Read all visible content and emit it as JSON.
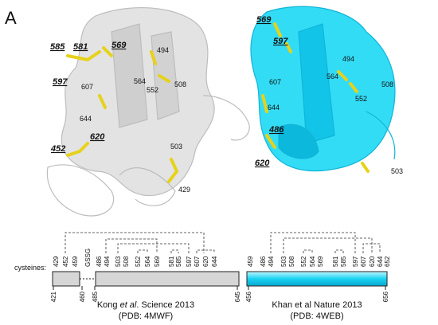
{
  "panel_label": "A",
  "left_structure": {
    "labels": [
      {
        "text": "585",
        "emphasized": true
      },
      {
        "text": "581",
        "emphasized": true
      },
      {
        "text": "569",
        "emphasized": true
      },
      {
        "text": "597",
        "emphasized": true
      },
      {
        "text": "607",
        "emphasized": false
      },
      {
        "text": "644",
        "emphasized": false
      },
      {
        "text": "494",
        "emphasized": false
      },
      {
        "text": "564",
        "emphasized": false
      },
      {
        "text": "552",
        "emphasized": false
      },
      {
        "text": "508",
        "emphasized": false
      },
      {
        "text": "620",
        "emphasized": true
      },
      {
        "text": "452",
        "emphasized": true
      },
      {
        "text": "503",
        "emphasized": false
      },
      {
        "text": "429",
        "emphasized": false
      }
    ]
  },
  "right_structure": {
    "labels": [
      {
        "text": "569",
        "emphasized": true
      },
      {
        "text": "597",
        "emphasized": true
      },
      {
        "text": "494",
        "emphasized": false
      },
      {
        "text": "564",
        "emphasized": false
      },
      {
        "text": "508",
        "emphasized": false
      },
      {
        "text": "607",
        "emphasized": false
      },
      {
        "text": "552",
        "emphasized": false
      },
      {
        "text": "644",
        "emphasized": false
      },
      {
        "text": "486",
        "emphasized": true
      },
      {
        "text": "620",
        "emphasized": true
      },
      {
        "text": "503",
        "emphasized": false
      }
    ]
  },
  "cysteines_label": "cysteines:",
  "left_diagram": {
    "residues": [
      "429",
      "452",
      "459",
      "GSSG",
      "486",
      "494",
      "503",
      "508",
      "552",
      "564",
      "569",
      "581",
      "585",
      "597",
      "607",
      "620",
      "644"
    ],
    "ends": [
      "421",
      "460",
      "485",
      "645"
    ],
    "caption": {
      "author": "Kong ",
      "etal": "et al",
      "rest": ". Science 2013",
      "pdb": "(PDB: 4MWF)"
    }
  },
  "right_diagram": {
    "residues": [
      "459",
      "486",
      "494",
      "503",
      "508",
      "552",
      "564",
      "569",
      "581",
      "585",
      "597",
      "607",
      "620",
      "644",
      "652"
    ],
    "ends": [
      "456",
      "656"
    ],
    "caption": {
      "text": "Khan et al Nature 2013",
      "pdb": "(PDB: 4WEB)"
    }
  }
}
